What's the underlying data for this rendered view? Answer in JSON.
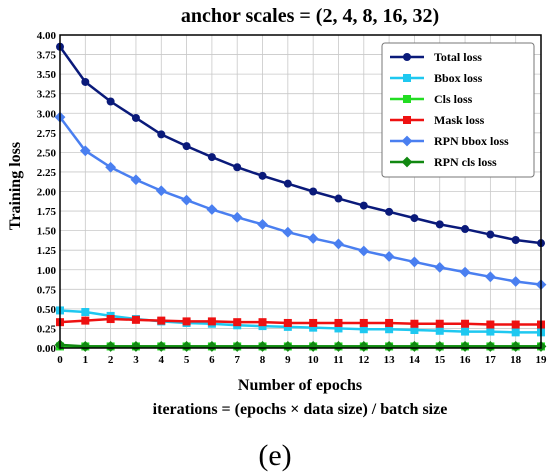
{
  "chart_data": {
    "type": "line",
    "title": "anchor scales = (2, 4, 8, 16, 32)",
    "xlabel": "Number of epochs",
    "ylabel": "Training loss",
    "subtitle_below": "iterations = (epochs × data size) / batch size",
    "panel_label": "(e)",
    "x": [
      0,
      1,
      2,
      3,
      4,
      5,
      6,
      7,
      8,
      9,
      10,
      11,
      12,
      13,
      14,
      15,
      16,
      17,
      18,
      19
    ],
    "xlim": [
      0,
      19
    ],
    "ylim": [
      0,
      4.0
    ],
    "yticks": [
      "0.00",
      "0.25",
      "0.50",
      "0.75",
      "1.00",
      "1.25",
      "1.50",
      "1.75",
      "2.00",
      "2.25",
      "2.50",
      "2.75",
      "3.00",
      "3.25",
      "3.50",
      "3.75",
      "4.00"
    ],
    "xticks": [
      "0",
      "1",
      "2",
      "3",
      "4",
      "5",
      "6",
      "7",
      "8",
      "9",
      "10",
      "11",
      "12",
      "13",
      "14",
      "15",
      "16",
      "17",
      "18",
      "19"
    ],
    "grid": true,
    "legend_position": "top-right",
    "series": [
      {
        "name": "Total loss",
        "color": "#0a1a7a",
        "marker": "circle",
        "values": [
          3.85,
          3.4,
          3.15,
          2.94,
          2.73,
          2.58,
          2.44,
          2.31,
          2.2,
          2.1,
          2.0,
          1.91,
          1.82,
          1.74,
          1.66,
          1.58,
          1.52,
          1.45,
          1.38,
          1.34
        ]
      },
      {
        "name": "Bbox loss",
        "color": "#1ec8f0",
        "marker": "square",
        "values": [
          0.48,
          0.46,
          0.41,
          0.37,
          0.34,
          0.32,
          0.31,
          0.29,
          0.28,
          0.27,
          0.26,
          0.25,
          0.24,
          0.24,
          0.23,
          0.22,
          0.21,
          0.21,
          0.2,
          0.2
        ]
      },
      {
        "name": "Cls loss",
        "color": "#22dd22",
        "marker": "square",
        "values": [
          0.02,
          0.02,
          0.02,
          0.02,
          0.02,
          0.02,
          0.02,
          0.02,
          0.02,
          0.02,
          0.02,
          0.02,
          0.02,
          0.02,
          0.02,
          0.02,
          0.02,
          0.02,
          0.02,
          0.02
        ]
      },
      {
        "name": "Mask loss",
        "color": "#ee1111",
        "marker": "square",
        "values": [
          0.33,
          0.35,
          0.37,
          0.36,
          0.35,
          0.34,
          0.34,
          0.33,
          0.33,
          0.32,
          0.32,
          0.32,
          0.32,
          0.32,
          0.31,
          0.31,
          0.31,
          0.3,
          0.3,
          0.3
        ]
      },
      {
        "name": "RPN bbox loss",
        "color": "#4a7ff0",
        "marker": "diamond",
        "values": [
          2.95,
          2.52,
          2.31,
          2.15,
          2.01,
          1.89,
          1.77,
          1.67,
          1.58,
          1.48,
          1.4,
          1.33,
          1.24,
          1.17,
          1.1,
          1.03,
          0.97,
          0.91,
          0.85,
          0.81
        ]
      },
      {
        "name": "RPN cls loss",
        "color": "#118811",
        "marker": "diamond",
        "values": [
          0.04,
          0.02,
          0.02,
          0.02,
          0.02,
          0.02,
          0.02,
          0.02,
          0.02,
          0.02,
          0.02,
          0.02,
          0.02,
          0.02,
          0.02,
          0.02,
          0.02,
          0.02,
          0.02,
          0.02
        ]
      }
    ]
  }
}
